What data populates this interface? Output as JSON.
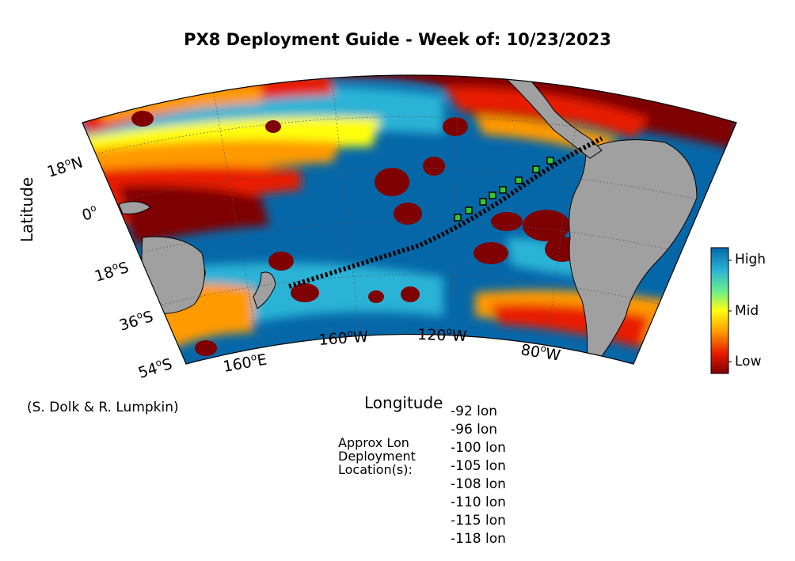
{
  "title": "PX8 Deployment Guide - Week of: 10/23/2023",
  "ylabel": "Latitude",
  "xlabel": "Longitude",
  "credit": "(S. Dolk & R. Lumpkin)",
  "deploy_label": [
    "Approx Lon",
    "Deployment",
    "Location(s):"
  ],
  "lat_ticks": [
    {
      "deg": "18",
      "hemi": "N"
    },
    {
      "deg": "0",
      "hemi": ""
    },
    {
      "deg": "18",
      "hemi": "S"
    },
    {
      "deg": "36",
      "hemi": "S"
    },
    {
      "deg": "54",
      "hemi": "S"
    }
  ],
  "lon_ticks": [
    {
      "deg": "160",
      "hemi": "E"
    },
    {
      "deg": "160",
      "hemi": "W"
    },
    {
      "deg": "120",
      "hemi": "W"
    },
    {
      "deg": "80",
      "hemi": "W"
    }
  ],
  "deployment_lons": [
    "-92 lon",
    "-96 lon",
    "-100 lon",
    "-105 lon",
    "-108 lon",
    "-110 lon",
    "-115 lon",
    "-118 lon"
  ],
  "colorbar": {
    "high": "High",
    "mid": "Mid",
    "low": "Low"
  },
  "colors": {
    "low": "#7f0000",
    "red": "#e81c00",
    "orange": "#ff9a00",
    "yellow": "#ffff10",
    "green": "#6cf08a",
    "cyan": "#2ab3d6",
    "high": "#0567a8",
    "land": "#a0a0a0",
    "marker_green": "#32c832"
  }
}
